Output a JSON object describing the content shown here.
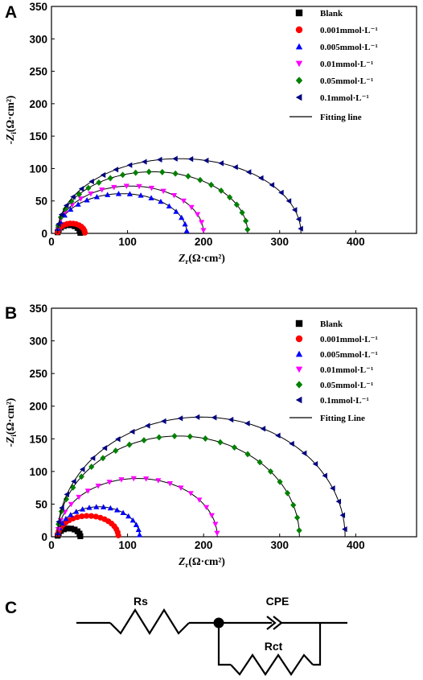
{
  "chart_data": [
    {
      "panel": "A",
      "type": "scatter",
      "x_axis": {
        "label_main": "Z",
        "label_sub": "r",
        "label_unit": "(Ω·cm²)",
        "ticks": [
          "0",
          "100",
          "200",
          "300",
          "400"
        ],
        "range": [
          0,
          480
        ]
      },
      "y_axis": {
        "label_main": "-Z",
        "label_sub": "i",
        "label_unit": "(Ω·cm²)",
        "ticks": [
          "0",
          "50",
          "100",
          "150",
          "200",
          "250",
          "300",
          "350"
        ],
        "range": [
          0,
          350
        ]
      },
      "fitting_label": "Fitting line",
      "series": [
        {
          "name": "Blank",
          "marker": "square",
          "color": "#000000",
          "Rs": 8,
          "Rct": 30,
          "alpha": 0.85,
          "n_pts": 10
        },
        {
          "name": "0.001mmol·L⁻¹",
          "marker": "circle",
          "color": "#ff0000",
          "Rs": 8,
          "Rct": 36,
          "alpha": 0.85,
          "n_pts": 14
        },
        {
          "name": "0.005mmol·L⁻¹",
          "marker": "triangle-up",
          "color": "#0000ff",
          "Rs": 8,
          "Rct": 170,
          "alpha": 0.72,
          "n_pts": 18
        },
        {
          "name": "0.01mmol·L⁻¹",
          "marker": "triangle-down",
          "color": "#ff00ff",
          "Rs": 8,
          "Rct": 192,
          "alpha": 0.76,
          "n_pts": 18
        },
        {
          "name": "0.05mmol·L⁻¹",
          "marker": "diamond",
          "color": "#008000",
          "Rs": 8,
          "Rct": 250,
          "alpha": 0.76,
          "n_pts": 22
        },
        {
          "name": "0.1mmol·L⁻¹",
          "marker": "triangle-left",
          "color": "#000080",
          "Rs": 8,
          "Rct": 320,
          "alpha": 0.72,
          "n_pts": 24
        }
      ]
    },
    {
      "panel": "B",
      "type": "scatter",
      "x_axis": {
        "label_main": "Z",
        "label_sub": "r",
        "label_unit": "(Ω·cm²)",
        "ticks": [
          "0",
          "100",
          "200",
          "300",
          "400"
        ],
        "range": [
          0,
          480
        ]
      },
      "y_axis": {
        "label_main": "-Z",
        "label_sub": "i",
        "label_unit": "(Ω·cm²)",
        "ticks": [
          "0",
          "50",
          "100",
          "150",
          "200",
          "250",
          "300",
          "350"
        ],
        "range": [
          0,
          350
        ]
      },
      "fitting_label": "Fitting Line",
      "series": [
        {
          "name": "Blank",
          "marker": "square",
          "color": "#000000",
          "Rs": 8,
          "Rct": 30,
          "alpha": 0.85,
          "n_pts": 10
        },
        {
          "name": "0.001mmol·L⁻¹",
          "marker": "circle",
          "color": "#ff0000",
          "Rs": 8,
          "Rct": 80,
          "alpha": 0.8,
          "n_pts": 20
        },
        {
          "name": "0.005mmol·L⁻¹",
          "marker": "triangle-up",
          "color": "#0000ff",
          "Rs": 8,
          "Rct": 108,
          "alpha": 0.85,
          "n_pts": 18
        },
        {
          "name": "0.01mmol·L⁻¹",
          "marker": "triangle-down",
          "color": "#ff00ff",
          "Rs": 8,
          "Rct": 210,
          "alpha": 0.85,
          "n_pts": 20
        },
        {
          "name": "0.05mmol·L⁻¹",
          "marker": "diamond",
          "color": "#008000",
          "Rs": 8,
          "Rct": 318,
          "alpha": 0.97,
          "n_pts": 24
        },
        {
          "name": "0.1mmol·L⁻¹",
          "marker": "triangle-left",
          "color": "#000080",
          "Rs": 8,
          "Rct": 378,
          "alpha": 0.97,
          "n_pts": 26
        }
      ]
    }
  ],
  "panels": {
    "A": "A",
    "B": "B",
    "C": "C"
  },
  "circuit": {
    "rs_label": "Rs",
    "cpe_label": "CPE",
    "rct_label": "Rct"
  }
}
